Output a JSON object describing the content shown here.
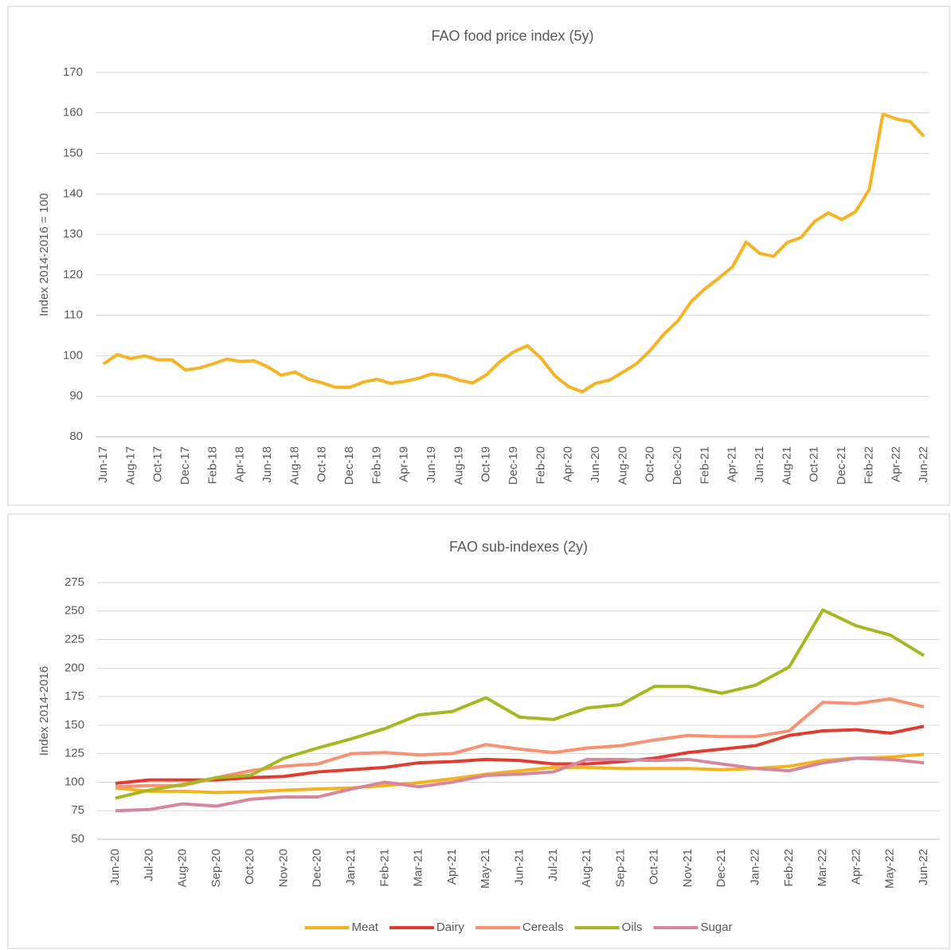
{
  "chart_data": [
    {
      "type": "line",
      "title": "FAO food price index (5y)",
      "y_label": "Index 2014-2016 = 100",
      "categories": [
        "Jun-17",
        null,
        "Aug-17",
        null,
        "Oct-17",
        null,
        "Dec-17",
        null,
        "Feb-18",
        null,
        "Apr-18",
        null,
        "Jun-18",
        null,
        "Aug-18",
        null,
        "Oct-18",
        null,
        "Dec-18",
        null,
        "Feb-19",
        null,
        "Apr-19",
        null,
        "Jun-19",
        null,
        "Aug-19",
        null,
        "Oct-19",
        null,
        "Dec-19",
        null,
        "Feb-20",
        null,
        "Apr-20",
        null,
        "Jun-20",
        null,
        "Aug-20",
        null,
        "Oct-20",
        null,
        "Dec-20",
        null,
        "Feb-21",
        null,
        "Apr-21",
        null,
        "Jun-21",
        null,
        "Aug-21",
        null,
        "Oct-21",
        null,
        "Dec-21",
        null,
        "Feb-22",
        null,
        "Apr-22",
        null,
        "Jun-22"
      ],
      "values": [
        98,
        100.3,
        99.3,
        100,
        99,
        99,
        96.5,
        97,
        98,
        99.2,
        98.6,
        98.8,
        97.3,
        95.2,
        96,
        94.2,
        93.3,
        92.2,
        92.2,
        93.5,
        94.2,
        93.2,
        93.7,
        94.4,
        95.5,
        95.1,
        94,
        93.3,
        95.3,
        98.6,
        101,
        102.5,
        99.4,
        95.1,
        92.4,
        91.1,
        93.2,
        94,
        96,
        98.1,
        101.4,
        105.4,
        108.6,
        113.5,
        116.6,
        119.2,
        122,
        128.1,
        125.3,
        124.6,
        128,
        129.2,
        133.2,
        135.3,
        133.7,
        135.6,
        141.1,
        159.7,
        158.5,
        157.9,
        154.2
      ],
      "color": "#f8b324",
      "ylim": [
        80,
        170
      ],
      "yticks": [
        80,
        90,
        100,
        110,
        120,
        130,
        140,
        150,
        160,
        170
      ],
      "grid": true
    },
    {
      "type": "line",
      "title": "FAO sub-indexes (2y)",
      "y_label": "Index 2014-2016",
      "categories": [
        "Jun-20",
        "Jul-20",
        "Aug-20",
        "Sep-20",
        "Oct-20",
        "Nov-20",
        "Dec-20",
        "Jan-21",
        "Feb-21",
        "Mar-21",
        "Apr-21",
        "May-21",
        "Jun-21",
        "Jul-21",
        "Aug-21",
        "Sep-21",
        "Oct-21",
        "Nov-21",
        "Dec-21",
        "Jan-22",
        "Feb-22",
        "Mar-22",
        "Apr-22",
        "May-22",
        "Jun-22"
      ],
      "series": [
        {
          "name": "Meat",
          "color": "#f5b21f",
          "values": [
            95,
            92,
            92,
            91,
            91.5,
            93,
            94,
            95,
            97,
            99.5,
            103,
            107,
            110,
            113,
            113,
            112,
            112,
            112,
            111,
            112,
            114,
            119,
            121,
            122,
            124.5
          ]
        },
        {
          "name": "Dairy",
          "color": "#e03c31",
          "values": [
            99,
            102,
            102,
            102,
            104,
            105,
            109,
            111,
            113,
            117,
            118,
            120,
            119,
            116,
            116,
            118,
            121,
            126,
            129,
            132,
            141,
            145,
            146,
            143,
            149
          ]
        },
        {
          "name": "Cereals",
          "color": "#f89273",
          "values": [
            96,
            97,
            97,
            104,
            110,
            114,
            116,
            125,
            126,
            124,
            125,
            133,
            129,
            126,
            130,
            132,
            137,
            141,
            140,
            140,
            145,
            170,
            169,
            173,
            166
          ]
        },
        {
          "name": "Oils",
          "color": "#a6b81f",
          "values": [
            86,
            93,
            98,
            104,
            106,
            121,
            130,
            138,
            147,
            159,
            162,
            174,
            157,
            155,
            165,
            168,
            184,
            184,
            178,
            185,
            201,
            251,
            237,
            229,
            211
          ]
        },
        {
          "name": "Sugar",
          "color": "#d7869b",
          "values": [
            75,
            76,
            81,
            79,
            85,
            87,
            87,
            94,
            100,
            96,
            100,
            106,
            107,
            109,
            120,
            120,
            119,
            120,
            116,
            112,
            110,
            117,
            121,
            120,
            117
          ]
        }
      ],
      "ylim": [
        50,
        275
      ],
      "yticks": [
        50,
        75,
        100,
        125,
        150,
        175,
        200,
        225,
        250,
        275
      ],
      "grid": true,
      "legend": "bottom"
    }
  ]
}
